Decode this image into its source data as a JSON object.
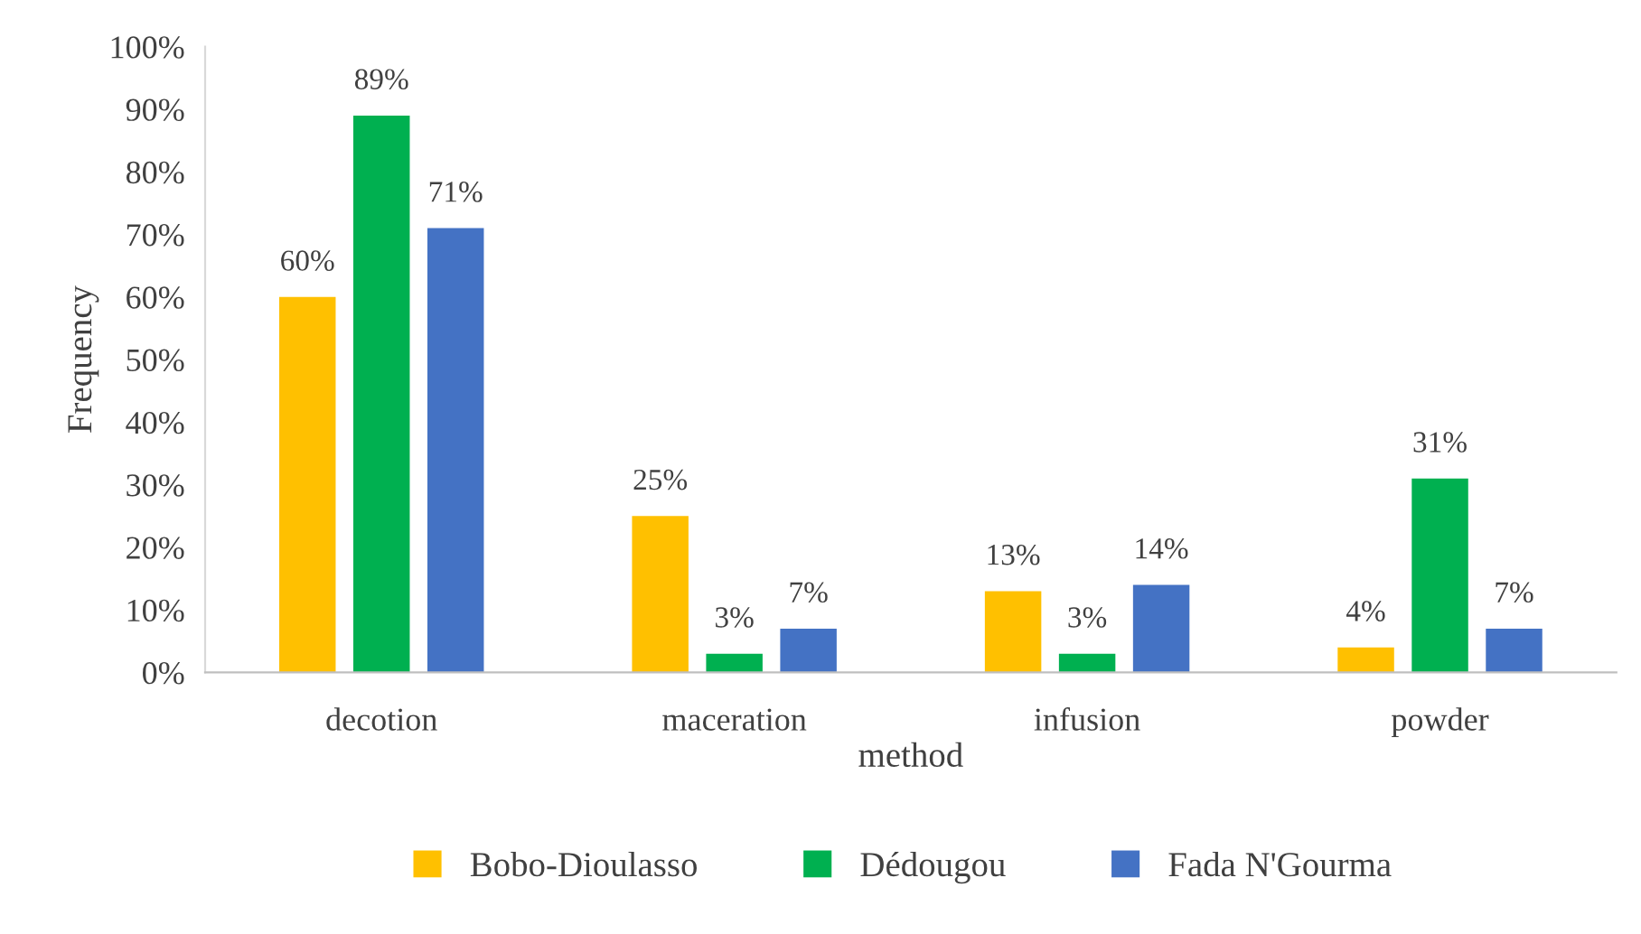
{
  "chart_data": {
    "type": "bar",
    "xlabel": "method",
    "ylabel": "Frequency",
    "categories": [
      "decotion",
      "maceration",
      "infusion",
      "powder"
    ],
    "series": [
      {
        "name": "Bobo-Dioulasso",
        "color": "#ffc000",
        "values": [
          60,
          25,
          13,
          4
        ],
        "value_labels": [
          "60%",
          "25%",
          "13%",
          "4%"
        ]
      },
      {
        "name": "Dédougou",
        "color": "#00b050",
        "values": [
          89,
          3,
          3,
          31
        ],
        "value_labels": [
          "89%",
          "3%",
          "3%",
          "31%"
        ]
      },
      {
        "name": "Fada N'Gourma",
        "color": "#4472c4",
        "values": [
          71,
          7,
          14,
          7
        ],
        "value_labels": [
          "71%",
          "7%",
          "14%",
          "7%"
        ]
      }
    ],
    "ylim": [
      0,
      100
    ],
    "yticks": [
      {
        "value": 0,
        "label": "0%"
      },
      {
        "value": 10,
        "label": "10%"
      },
      {
        "value": 20,
        "label": "20%"
      },
      {
        "value": 30,
        "label": "30%"
      },
      {
        "value": 40,
        "label": "40%"
      },
      {
        "value": 50,
        "label": "50%"
      },
      {
        "value": 60,
        "label": "60%"
      },
      {
        "value": 70,
        "label": "70%"
      },
      {
        "value": 80,
        "label": "80%"
      },
      {
        "value": 90,
        "label": "90%"
      },
      {
        "value": 100,
        "label": "100%"
      }
    ],
    "grid": false,
    "legend": "bottom"
  }
}
